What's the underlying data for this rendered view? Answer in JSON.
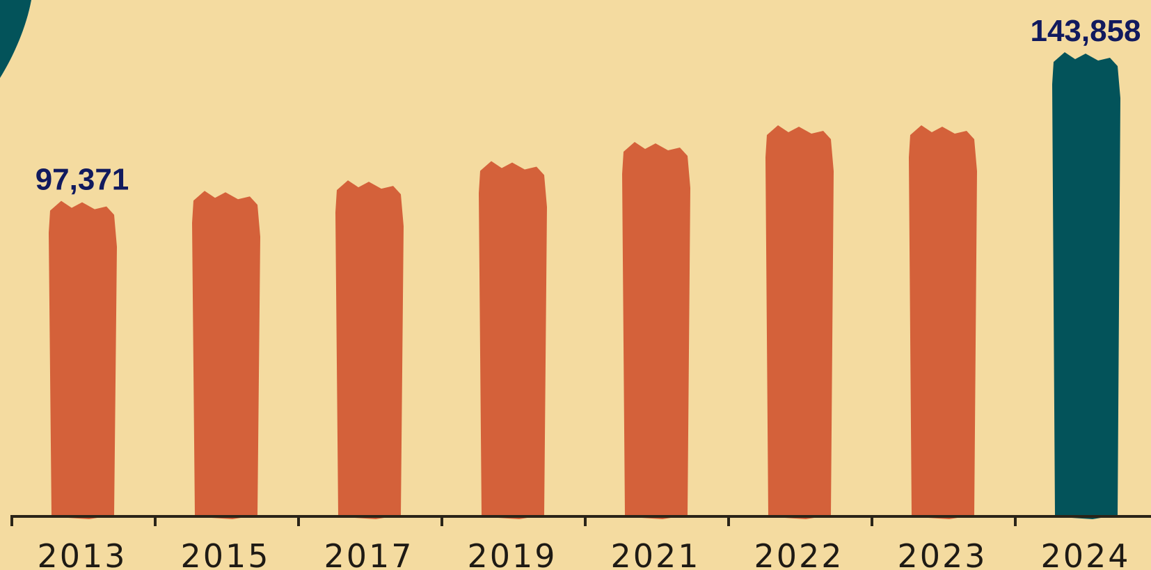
{
  "colors": {
    "background": "#f4dba0",
    "bar": "#d4613a",
    "highlight": "#03535a",
    "label": "#111a5e",
    "axis": "#2a2418",
    "tick_text": "#1e1a14"
  },
  "chart_data": {
    "type": "bar",
    "title": "",
    "xlabel": "",
    "ylabel": "",
    "categories": [
      "2013",
      "2015",
      "2017",
      "2019",
      "2021",
      "2022",
      "2023",
      "2024"
    ],
    "values": [
      97371,
      100500,
      103800,
      109800,
      115800,
      121000,
      121000,
      143858
    ],
    "value_labels": [
      "97,371",
      "",
      "",
      "",
      "",
      "",
      "",
      "143,858"
    ],
    "highlight_index": 7,
    "ylim": [
      0,
      148000
    ],
    "grid": false,
    "legend": "none"
  }
}
